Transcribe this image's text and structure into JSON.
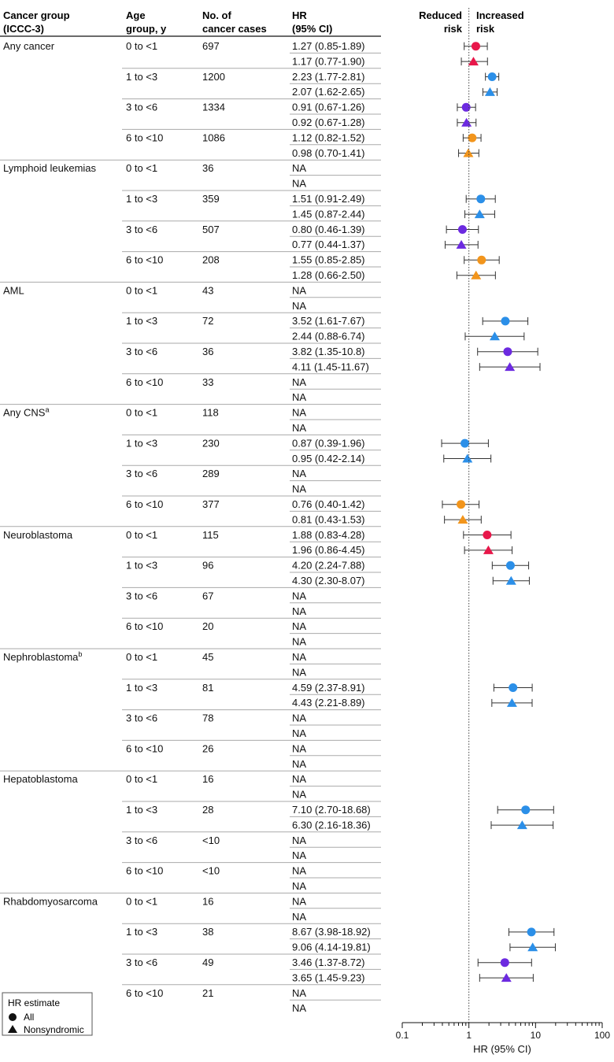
{
  "headers": {
    "group": [
      "Cancer group",
      "(ICCC-3)"
    ],
    "age": [
      "Age",
      "group, y"
    ],
    "cases": [
      "No. of",
      "cancer cases"
    ],
    "hr": [
      "HR",
      "(95% CI)"
    ],
    "reduced": [
      "Reduced",
      "risk"
    ],
    "increased": [
      "Increased",
      "risk"
    ]
  },
  "legend": {
    "title": "HR estimate",
    "all": "All",
    "nonsyndromic": "Nonsyndromic"
  },
  "age_colors": {
    "0 to <1": "#e8174a",
    "1 to <3": "#2b8fe8",
    "3 to <6": "#6c2ae0",
    "6 to <10": "#f2951c"
  },
  "chart_data": {
    "type": "forest",
    "xlabel": "HR (95% CI)",
    "xscale": "log",
    "xlim": [
      0.1,
      100
    ],
    "xticks": [
      0.1,
      1,
      10,
      100
    ],
    "xtick_labels": [
      "0.1",
      "1",
      "10",
      "100"
    ],
    "reference_line": 1,
    "groups": [
      {
        "name": "Any cancer",
        "sup": "",
        "ages": [
          {
            "age": "0 to <1",
            "cases": "697",
            "rows": [
              {
                "label": "1.27 (0.85-1.89)",
                "hr": 1.27,
                "lo": 0.85,
                "hi": 1.89,
                "marker": "circle"
              },
              {
                "label": "1.17 (0.77-1.90)",
                "hr": 1.17,
                "lo": 0.77,
                "hi": 1.9,
                "marker": "triangle"
              }
            ]
          },
          {
            "age": "1 to <3",
            "cases": "1200",
            "rows": [
              {
                "label": "2.23 (1.77-2.81)",
                "hr": 2.23,
                "lo": 1.77,
                "hi": 2.81,
                "marker": "circle"
              },
              {
                "label": "2.07 (1.62-2.65)",
                "hr": 2.07,
                "lo": 1.62,
                "hi": 2.65,
                "marker": "triangle"
              }
            ]
          },
          {
            "age": "3 to <6",
            "cases": "1334",
            "rows": [
              {
                "label": "0.91 (0.67-1.26)",
                "hr": 0.91,
                "lo": 0.67,
                "hi": 1.26,
                "marker": "circle"
              },
              {
                "label": "0.92 (0.67-1.28)",
                "hr": 0.92,
                "lo": 0.67,
                "hi": 1.28,
                "marker": "triangle"
              }
            ]
          },
          {
            "age": "6 to <10",
            "cases": "1086",
            "rows": [
              {
                "label": "1.12 (0.82-1.52)",
                "hr": 1.12,
                "lo": 0.82,
                "hi": 1.52,
                "marker": "circle"
              },
              {
                "label": "0.98 (0.70-1.41)",
                "hr": 0.98,
                "lo": 0.7,
                "hi": 1.41,
                "marker": "triangle"
              }
            ]
          }
        ]
      },
      {
        "name": "Lymphoid leukemias",
        "sup": "",
        "ages": [
          {
            "age": "0 to <1",
            "cases": "36",
            "rows": [
              {
                "label": "NA",
                "marker": "circle"
              },
              {
                "label": "NA",
                "marker": "triangle"
              }
            ]
          },
          {
            "age": "1 to <3",
            "cases": "359",
            "rows": [
              {
                "label": "1.51 (0.91-2.49)",
                "hr": 1.51,
                "lo": 0.91,
                "hi": 2.49,
                "marker": "circle"
              },
              {
                "label": "1.45 (0.87-2.44)",
                "hr": 1.45,
                "lo": 0.87,
                "hi": 2.44,
                "marker": "triangle"
              }
            ]
          },
          {
            "age": "3 to <6",
            "cases": "507",
            "rows": [
              {
                "label": "0.80 (0.46-1.39)",
                "hr": 0.8,
                "lo": 0.46,
                "hi": 1.39,
                "marker": "circle"
              },
              {
                "label": "0.77 (0.44-1.37)",
                "hr": 0.77,
                "lo": 0.44,
                "hi": 1.37,
                "marker": "triangle"
              }
            ]
          },
          {
            "age": "6 to <10",
            "cases": "208",
            "rows": [
              {
                "label": "1.55 (0.85-2.85)",
                "hr": 1.55,
                "lo": 0.85,
                "hi": 2.85,
                "marker": "circle"
              },
              {
                "label": "1.28 (0.66-2.50)",
                "hr": 1.28,
                "lo": 0.66,
                "hi": 2.5,
                "marker": "triangle"
              }
            ]
          }
        ]
      },
      {
        "name": "AML",
        "sup": "",
        "ages": [
          {
            "age": "0 to <1",
            "cases": "43",
            "rows": [
              {
                "label": "NA",
                "marker": "circle"
              },
              {
                "label": "NA",
                "marker": "triangle"
              }
            ]
          },
          {
            "age": "1 to <3",
            "cases": "72",
            "rows": [
              {
                "label": "3.52 (1.61-7.67)",
                "hr": 3.52,
                "lo": 1.61,
                "hi": 7.67,
                "marker": "circle"
              },
              {
                "label": "2.44 (0.88-6.74)",
                "hr": 2.44,
                "lo": 0.88,
                "hi": 6.74,
                "marker": "triangle"
              }
            ]
          },
          {
            "age": "3 to <6",
            "cases": "36",
            "rows": [
              {
                "label": "3.82 (1.35-10.8)",
                "hr": 3.82,
                "lo": 1.35,
                "hi": 10.8,
                "marker": "circle"
              },
              {
                "label": "4.11 (1.45-11.67)",
                "hr": 4.11,
                "lo": 1.45,
                "hi": 11.67,
                "marker": "triangle"
              }
            ]
          },
          {
            "age": "6 to <10",
            "cases": "33",
            "rows": [
              {
                "label": "NA",
                "marker": "circle"
              },
              {
                "label": "NA",
                "marker": "triangle"
              }
            ]
          }
        ]
      },
      {
        "name": "Any CNS",
        "sup": "a",
        "ages": [
          {
            "age": "0 to <1",
            "cases": "118",
            "rows": [
              {
                "label": "NA",
                "marker": "circle"
              },
              {
                "label": "NA",
                "marker": "triangle"
              }
            ]
          },
          {
            "age": "1 to <3",
            "cases": "230",
            "rows": [
              {
                "label": "0.87 (0.39-1.96)",
                "hr": 0.87,
                "lo": 0.39,
                "hi": 1.96,
                "marker": "circle"
              },
              {
                "label": "0.95 (0.42-2.14)",
                "hr": 0.95,
                "lo": 0.42,
                "hi": 2.14,
                "marker": "triangle"
              }
            ]
          },
          {
            "age": "3 to <6",
            "cases": "289",
            "rows": [
              {
                "label": "NA",
                "marker": "circle"
              },
              {
                "label": "NA",
                "marker": "triangle"
              }
            ]
          },
          {
            "age": "6 to <10",
            "cases": "377",
            "rows": [
              {
                "label": "0.76 (0.40-1.42)",
                "hr": 0.76,
                "lo": 0.4,
                "hi": 1.42,
                "marker": "circle"
              },
              {
                "label": "0.81 (0.43-1.53)",
                "hr": 0.81,
                "lo": 0.43,
                "hi": 1.53,
                "marker": "triangle"
              }
            ]
          }
        ]
      },
      {
        "name": "Neuroblastoma",
        "sup": "",
        "ages": [
          {
            "age": "0 to <1",
            "cases": "115",
            "rows": [
              {
                "label": "1.88 (0.83-4.28)",
                "hr": 1.88,
                "lo": 0.83,
                "hi": 4.28,
                "marker": "circle"
              },
              {
                "label": "1.96 (0.86-4.45)",
                "hr": 1.96,
                "lo": 0.86,
                "hi": 4.45,
                "marker": "triangle"
              }
            ]
          },
          {
            "age": "1 to <3",
            "cases": "96",
            "rows": [
              {
                "label": "4.20 (2.24-7.88)",
                "hr": 4.2,
                "lo": 2.24,
                "hi": 7.88,
                "marker": "circle"
              },
              {
                "label": "4.30 (2.30-8.07)",
                "hr": 4.3,
                "lo": 2.3,
                "hi": 8.07,
                "marker": "triangle"
              }
            ]
          },
          {
            "age": "3 to <6",
            "cases": "67",
            "rows": [
              {
                "label": "NA",
                "marker": "circle"
              },
              {
                "label": "NA",
                "marker": "triangle"
              }
            ]
          },
          {
            "age": "6 to <10",
            "cases": "20",
            "rows": [
              {
                "label": "NA",
                "marker": "circle"
              },
              {
                "label": "NA",
                "marker": "triangle"
              }
            ]
          }
        ]
      },
      {
        "name": "Nephroblastoma",
        "sup": "b",
        "ages": [
          {
            "age": "0 to <1",
            "cases": "45",
            "rows": [
              {
                "label": "NA",
                "marker": "circle"
              },
              {
                "label": "NA",
                "marker": "triangle"
              }
            ]
          },
          {
            "age": "1 to <3",
            "cases": "81",
            "rows": [
              {
                "label": "4.59 (2.37-8.91)",
                "hr": 4.59,
                "lo": 2.37,
                "hi": 8.91,
                "marker": "circle"
              },
              {
                "label": "4.43 (2.21-8.89)",
                "hr": 4.43,
                "lo": 2.21,
                "hi": 8.89,
                "marker": "triangle"
              }
            ]
          },
          {
            "age": "3 to <6",
            "cases": "78",
            "rows": [
              {
                "label": "NA",
                "marker": "circle"
              },
              {
                "label": "NA",
                "marker": "triangle"
              }
            ]
          },
          {
            "age": "6 to <10",
            "cases": "26",
            "rows": [
              {
                "label": "NA",
                "marker": "circle"
              },
              {
                "label": "NA",
                "marker": "triangle"
              }
            ]
          }
        ]
      },
      {
        "name": "Hepatoblastoma",
        "sup": "",
        "ages": [
          {
            "age": "0 to <1",
            "cases": "16",
            "rows": [
              {
                "label": "NA",
                "marker": "circle"
              },
              {
                "label": "NA",
                "marker": "triangle"
              }
            ]
          },
          {
            "age": "1 to <3",
            "cases": "28",
            "rows": [
              {
                "label": "7.10 (2.70-18.68)",
                "hr": 7.1,
                "lo": 2.7,
                "hi": 18.68,
                "marker": "circle"
              },
              {
                "label": "6.30 (2.16-18.36)",
                "hr": 6.3,
                "lo": 2.16,
                "hi": 18.36,
                "marker": "triangle"
              }
            ]
          },
          {
            "age": "3 to <6",
            "cases": "<10",
            "rows": [
              {
                "label": "NA",
                "marker": "circle"
              },
              {
                "label": "NA",
                "marker": "triangle"
              }
            ]
          },
          {
            "age": "6 to <10",
            "cases": "<10",
            "rows": [
              {
                "label": "NA",
                "marker": "circle"
              },
              {
                "label": "NA",
                "marker": "triangle"
              }
            ]
          }
        ]
      },
      {
        "name": "Rhabdomyosarcoma",
        "sup": "",
        "ages": [
          {
            "age": "0 to <1",
            "cases": "16",
            "rows": [
              {
                "label": "NA",
                "marker": "circle"
              },
              {
                "label": "NA",
                "marker": "triangle"
              }
            ]
          },
          {
            "age": "1 to <3",
            "cases": "38",
            "rows": [
              {
                "label": "8.67 (3.98-18.92)",
                "hr": 8.67,
                "lo": 3.98,
                "hi": 18.92,
                "marker": "circle"
              },
              {
                "label": "9.06 (4.14-19.81)",
                "hr": 9.06,
                "lo": 4.14,
                "hi": 19.81,
                "marker": "triangle"
              }
            ]
          },
          {
            "age": "3 to <6",
            "cases": "49",
            "rows": [
              {
                "label": "3.46 (1.37-8.72)",
                "hr": 3.46,
                "lo": 1.37,
                "hi": 8.72,
                "marker": "circle"
              },
              {
                "label": "3.65 (1.45-9.23)",
                "hr": 3.65,
                "lo": 1.45,
                "hi": 9.23,
                "marker": "triangle"
              }
            ]
          },
          {
            "age": "6 to <10",
            "cases": "21",
            "rows": [
              {
                "label": "NA",
                "marker": "circle"
              },
              {
                "label": "NA",
                "marker": "triangle"
              }
            ]
          }
        ]
      }
    ]
  }
}
